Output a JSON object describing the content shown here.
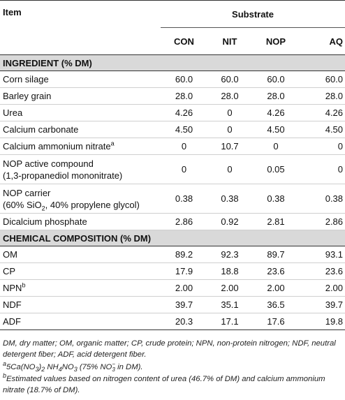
{
  "table": {
    "item_header": "Item",
    "substrate_header": "Substrate",
    "columns": [
      "CON",
      "NIT",
      "NOP",
      "AQ"
    ],
    "sections": [
      {
        "title": "INGREDIENT (% DM)",
        "rows": [
          {
            "label": "Corn silage",
            "values": [
              "60.0",
              "60.0",
              "60.0",
              "60.0"
            ]
          },
          {
            "label": "Barley grain",
            "values": [
              "28.0",
              "28.0",
              "28.0",
              "28.0"
            ]
          },
          {
            "label": "Urea",
            "values": [
              "4.26",
              "0",
              "4.26",
              "4.26"
            ]
          },
          {
            "label": "Calcium carbonate",
            "values": [
              "4.50",
              "0",
              "4.50",
              "4.50"
            ]
          },
          {
            "label": "Calcium ammonium nitrate",
            "sup": "a",
            "values": [
              "0",
              "10.7",
              "0",
              "0"
            ]
          },
          {
            "label": "NOP active compound",
            "label2": "(1,3-propanediol mononitrate)",
            "values": [
              "0",
              "0",
              "0.05",
              "0"
            ]
          },
          {
            "label": "NOP carrier",
            "label2_pre": "(60% SiO",
            "label2_sub": "2",
            "label2_post": ", 40% propylene glycol)",
            "values": [
              "0.38",
              "0.38",
              "0.38",
              "0.38"
            ]
          },
          {
            "label": "Dicalcium phosphate",
            "values": [
              "2.86",
              "0.92",
              "2.81",
              "2.86"
            ]
          }
        ]
      },
      {
        "title": "CHEMICAL COMPOSITION (% DM)",
        "rows": [
          {
            "label": "OM",
            "values": [
              "89.2",
              "92.3",
              "89.7",
              "93.1"
            ]
          },
          {
            "label": "CP",
            "values": [
              "17.9",
              "18.8",
              "23.6",
              "23.6"
            ]
          },
          {
            "label": "NPN",
            "sup": "b",
            "values": [
              "2.00",
              "2.00",
              "2.00",
              "2.00"
            ]
          },
          {
            "label": "NDF",
            "values": [
              "39.7",
              "35.1",
              "36.5",
              "39.7"
            ]
          },
          {
            "label": "ADF",
            "values": [
              "20.3",
              "17.1",
              "17.6",
              "19.8"
            ]
          }
        ]
      }
    ]
  },
  "footnotes": {
    "abbreviations": "DM, dry matter; OM, organic matter; CP, crude protein; NPN, non-protein nitrogen; NDF, neutral detergent fiber; ADF, acid detergent fiber.",
    "a_mark": "a",
    "a_text_1": "5Ca(NO",
    "a_sub_1": "3",
    "a_text_2": ")",
    "a_sub_2": "2",
    "a_text_3": " NH",
    "a_sub_3": "4",
    "a_text_4": "NO",
    "a_sub_4": "3",
    "a_text_5": " (75% NO",
    "a_supsub_top": "−",
    "a_supsub_bot": "3",
    "a_text_6": " in DM).",
    "b_mark": "b",
    "b_text": "Estimated values based on nitrogen content of urea (46.7% of DM) and calcium ammonium nitrate (18.7% of DM)."
  }
}
